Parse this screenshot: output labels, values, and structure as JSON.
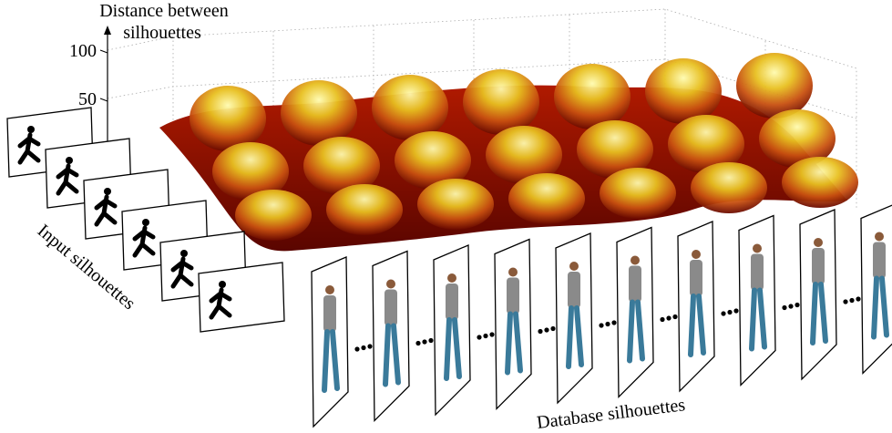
{
  "axis": {
    "title_line1": "Distance between",
    "title_line2": "silhouettes",
    "ticks": [
      100,
      50
    ]
  },
  "labels": {
    "input": "Input silhouettes",
    "database": "Database silhouettes"
  }
}
